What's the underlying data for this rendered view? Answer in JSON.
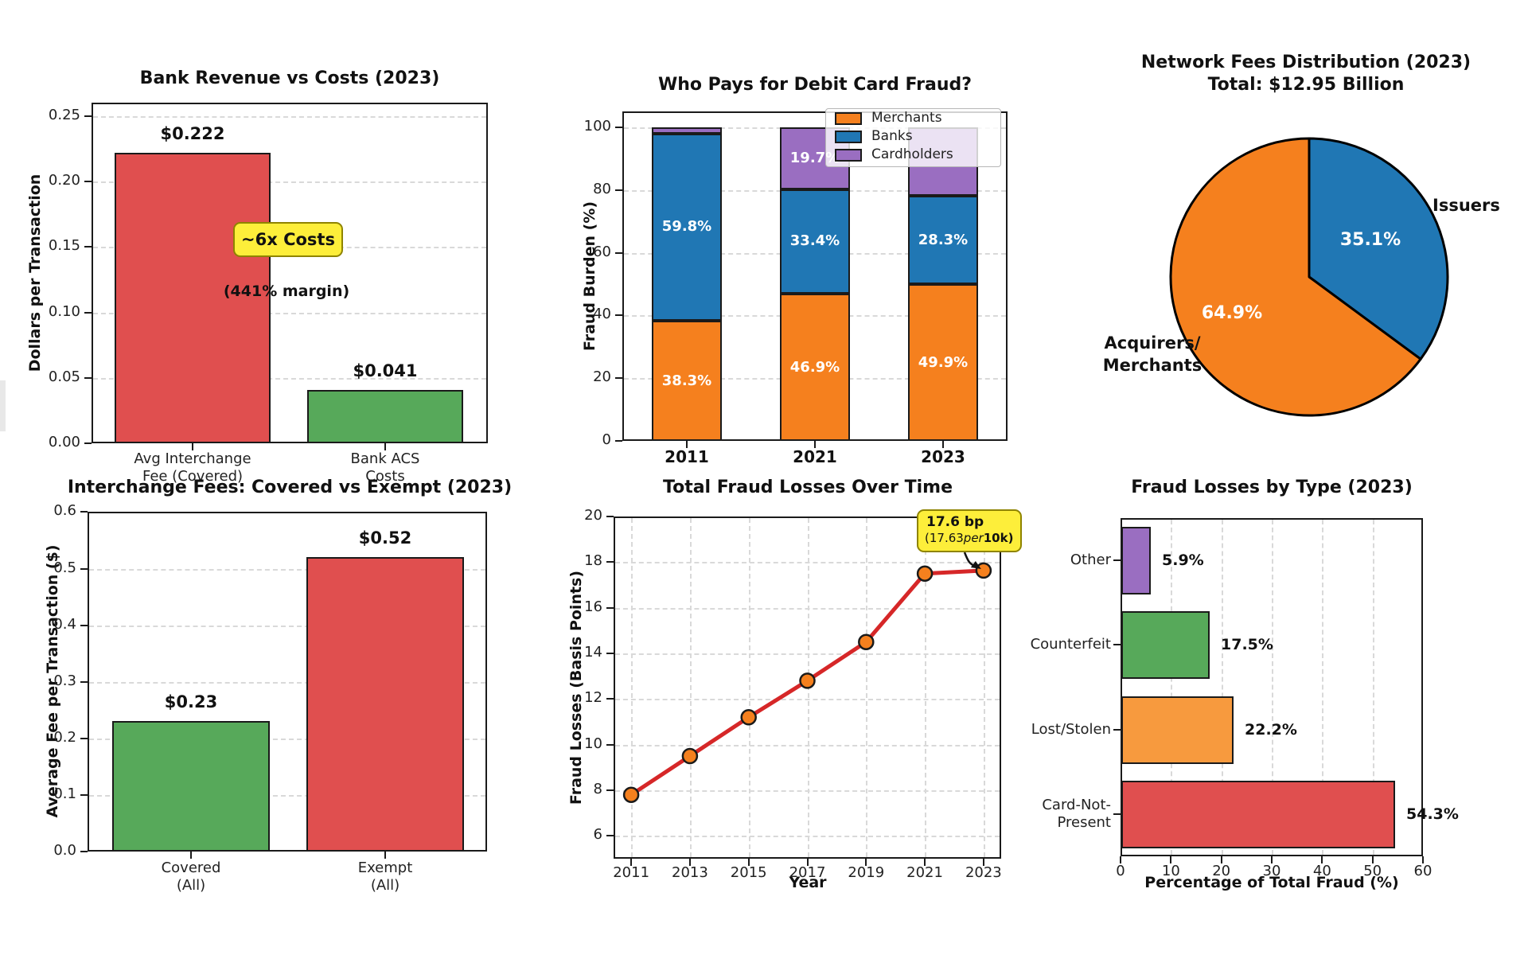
{
  "figure": {
    "background": "#ffffff",
    "spine_color": "#1a1a1a",
    "grid_color": "#d9d9d9",
    "annotation_yellow": "#fdee3a",
    "annotation_border": "#8f8400"
  },
  "chart_data": [
    {
      "id": "bank_revenue_costs",
      "type": "bar",
      "title": "Bank Revenue vs Costs (2023)",
      "ylabel": "Dollars per Transaction",
      "ylim": [
        0,
        0.26
      ],
      "yticks": [
        [
          0,
          "0.00"
        ],
        [
          0.05,
          "0.05"
        ],
        [
          0.1,
          "0.10"
        ],
        [
          0.15,
          "0.15"
        ],
        [
          0.2,
          "0.20"
        ],
        [
          0.25,
          "0.25"
        ]
      ],
      "grid": "horizontal-dashed",
      "categories": [
        [
          "Avg Interchange",
          "Fee (Covered)"
        ],
        [
          "Bank ACS",
          "Costs"
        ]
      ],
      "values": [
        0.222,
        0.041
      ],
      "value_labels": [
        "$0.222",
        "$0.041"
      ],
      "colors": [
        "#e04f4f",
        "#57a95a"
      ],
      "annotations": [
        {
          "text": "~6x Costs",
          "style": "yellow-box"
        },
        {
          "text": "(441% margin)",
          "style": "plain-bold"
        }
      ]
    },
    {
      "id": "who_pays_fraud",
      "type": "stacked_bar",
      "title": "Who Pays for Debit Card Fraud?",
      "ylabel": "Fraud Burden (%)",
      "ylim": [
        0,
        105
      ],
      "yticks": [
        [
          0,
          "0"
        ],
        [
          20,
          "20"
        ],
        [
          40,
          "40"
        ],
        [
          60,
          "60"
        ],
        [
          80,
          "80"
        ],
        [
          100,
          "100"
        ]
      ],
      "grid": "horizontal-dashed",
      "categories": [
        "2011",
        "2021",
        "2023"
      ],
      "series": [
        {
          "name": "Merchants",
          "color": "#f5801e",
          "values": [
            38.3,
            46.9,
            49.9
          ],
          "segment_labels": [
            "38.3%",
            "46.9%",
            "49.9%"
          ]
        },
        {
          "name": "Banks",
          "color": "#2077b4",
          "values": [
            59.8,
            33.4,
            28.3
          ],
          "segment_labels": [
            "59.8%",
            "33.4%",
            "28.3%"
          ]
        },
        {
          "name": "Cardholders",
          "color": "#9a6ec1",
          "values": [
            1.9,
            19.7,
            21.8
          ],
          "segment_labels": [
            "",
            "19.7%",
            ""
          ]
        }
      ],
      "legend": {
        "position": "upper-right",
        "entries": [
          "Merchants",
          "Banks",
          "Cardholders"
        ]
      }
    },
    {
      "id": "network_fees_pie",
      "type": "pie",
      "title_lines": [
        "Network Fees Distribution (2023)",
        "Total: $12.95 Billion"
      ],
      "start_angle_deg": 90,
      "direction": "clockwise",
      "slices": [
        {
          "label": "Issuers",
          "value": 35.1,
          "pct_label": "35.1%",
          "color": "#2077b4"
        },
        {
          "label_lines": [
            "Acquirers/",
            "Merchants"
          ],
          "value": 64.9,
          "pct_label": "64.9%",
          "color": "#f5801e"
        }
      ]
    },
    {
      "id": "interchange_covered_exempt",
      "type": "bar",
      "title": "Interchange Fees: Covered vs Exempt (2023)",
      "ylabel": "Average Fee per Transaction ($)",
      "ylim": [
        0,
        0.6
      ],
      "yticks": [
        [
          0,
          "0.0"
        ],
        [
          0.1,
          "0.1"
        ],
        [
          0.2,
          "0.2"
        ],
        [
          0.3,
          "0.3"
        ],
        [
          0.4,
          "0.4"
        ],
        [
          0.5,
          "0.5"
        ],
        [
          0.6,
          "0.6"
        ]
      ],
      "grid": "horizontal-dashed",
      "categories": [
        [
          "Covered",
          "(All)"
        ],
        [
          "Exempt",
          "(All)"
        ]
      ],
      "values": [
        0.23,
        0.52
      ],
      "value_labels": [
        "$0.23",
        "$0.52"
      ],
      "colors": [
        "#57a95a",
        "#e04f4f"
      ],
      "annotations": []
    },
    {
      "id": "fraud_losses_time",
      "type": "line",
      "title": "Total Fraud Losses Over Time",
      "xlabel": "Year",
      "ylabel": "Fraud Losses (Basis Points)",
      "xlim": [
        2010.4,
        2023.6
      ],
      "ylim": [
        5,
        20
      ],
      "xticks": [
        [
          2011,
          "2011"
        ],
        [
          2013,
          "2013"
        ],
        [
          2015,
          "2015"
        ],
        [
          2017,
          "2017"
        ],
        [
          2019,
          "2019"
        ],
        [
          2021,
          "2021"
        ],
        [
          2023,
          "2023"
        ]
      ],
      "yticks": [
        [
          6,
          "6"
        ],
        [
          8,
          "8"
        ],
        [
          10,
          "10"
        ],
        [
          12,
          "12"
        ],
        [
          14,
          "14"
        ],
        [
          16,
          "16"
        ],
        [
          18,
          "18"
        ],
        [
          20,
          "20"
        ]
      ],
      "grid": "both-dashed",
      "x": [
        2011,
        2013,
        2015,
        2017,
        2019,
        2021,
        2023
      ],
      "y": [
        7.8,
        9.5,
        11.2,
        12.8,
        14.5,
        17.5,
        17.63
      ],
      "line_color": "#d62728",
      "marker_color": "#f5801e",
      "marker_edge": "#1a1a1a",
      "annotation": {
        "line1": "17.6 bp",
        "line2_prefix": "(17.63",
        "line2_italic": "per",
        "line2_bold": "10k)",
        "target": [
          2023,
          17.63
        ]
      }
    },
    {
      "id": "fraud_by_type",
      "type": "barh",
      "title": "Fraud Losses by Type (2023)",
      "xlabel": "Percentage of Total Fraud (%)",
      "xlim": [
        0,
        60
      ],
      "xticks": [
        [
          0,
          "0"
        ],
        [
          10,
          "10"
        ],
        [
          20,
          "20"
        ],
        [
          30,
          "30"
        ],
        [
          40,
          "40"
        ],
        [
          50,
          "50"
        ],
        [
          60,
          "60"
        ]
      ],
      "grid": "vertical-dashed",
      "categories": [
        [
          "Other"
        ],
        [
          "Counterfeit"
        ],
        [
          "Lost/Stolen"
        ],
        [
          "Card-Not-",
          "Present"
        ]
      ],
      "values": [
        5.9,
        17.5,
        22.2,
        54.3
      ],
      "value_labels": [
        "5.9%",
        "17.5%",
        "22.2%",
        "54.3%"
      ],
      "colors": [
        "#9a6ec1",
        "#57a95a",
        "#f79a3e",
        "#e04f4f"
      ]
    }
  ]
}
